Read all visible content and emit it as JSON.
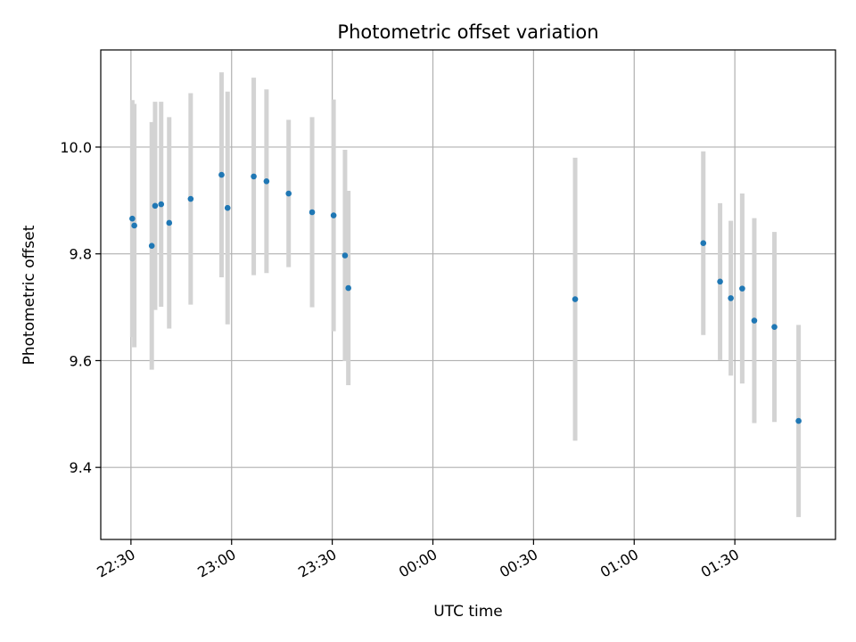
{
  "colors": {
    "point": "#1f77b4",
    "errorbar": "#d3d3d3",
    "grid": "#b0b0b0",
    "axis": "#000000",
    "background": "#ffffff"
  },
  "chart_data": {
    "type": "scatter",
    "title": "Photometric offset variation",
    "xlabel": "UTC time",
    "ylabel": "Photometric offset",
    "grid": true,
    "x_ticks": [
      "22:30",
      "23:00",
      "23:30",
      "00:00",
      "00:30",
      "01:00",
      "01:30"
    ],
    "y_ticks": [
      "9.4",
      "9.6",
      "9.8",
      "10.0"
    ],
    "xlim": [
      "22:21",
      "02:00"
    ],
    "ylim": [
      9.265,
      10.182
    ],
    "series": [
      {
        "error_bars": true,
        "points": [
          {
            "time": "22:30:24",
            "y": 9.866,
            "yerr": 0.222
          },
          {
            "time": "22:31:00",
            "y": 9.853,
            "yerr": 0.228
          },
          {
            "time": "22:36:12",
            "y": 9.815,
            "yerr": 0.232
          },
          {
            "time": "22:37:12",
            "y": 9.89,
            "yerr": 0.195
          },
          {
            "time": "22:39:00",
            "y": 9.893,
            "yerr": 0.192
          },
          {
            "time": "22:41:24",
            "y": 9.858,
            "yerr": 0.198
          },
          {
            "time": "22:47:48",
            "y": 9.903,
            "yerr": 0.198
          },
          {
            "time": "22:57:00",
            "y": 9.948,
            "yerr": 0.192
          },
          {
            "time": "22:58:48",
            "y": 9.886,
            "yerr": 0.218
          },
          {
            "time": "23:06:36",
            "y": 9.945,
            "yerr": 0.185
          },
          {
            "time": "23:10:24",
            "y": 9.936,
            "yerr": 0.172
          },
          {
            "time": "23:17:00",
            "y": 9.913,
            "yerr": 0.138
          },
          {
            "time": "23:24:00",
            "y": 9.878,
            "yerr": 0.178
          },
          {
            "time": "23:30:24",
            "y": 9.872,
            "yerr": 0.217
          },
          {
            "time": "23:33:48",
            "y": 9.797,
            "yerr": 0.198
          },
          {
            "time": "23:34:48",
            "y": 9.736,
            "yerr": 0.182
          },
          {
            "time": "00:42:24",
            "y": 9.715,
            "yerr": 0.265
          },
          {
            "time": "01:20:36",
            "y": 9.82,
            "yerr": 0.172
          },
          {
            "time": "01:25:36",
            "y": 9.748,
            "yerr": 0.147
          },
          {
            "time": "01:28:48",
            "y": 9.717,
            "yerr": 0.145
          },
          {
            "time": "01:32:12",
            "y": 9.735,
            "yerr": 0.178
          },
          {
            "time": "01:35:48",
            "y": 9.675,
            "yerr": 0.192
          },
          {
            "time": "01:41:48",
            "y": 9.663,
            "yerr": 0.178
          },
          {
            "time": "01:49:00",
            "y": 9.487,
            "yerr": 0.18
          }
        ]
      }
    ]
  }
}
